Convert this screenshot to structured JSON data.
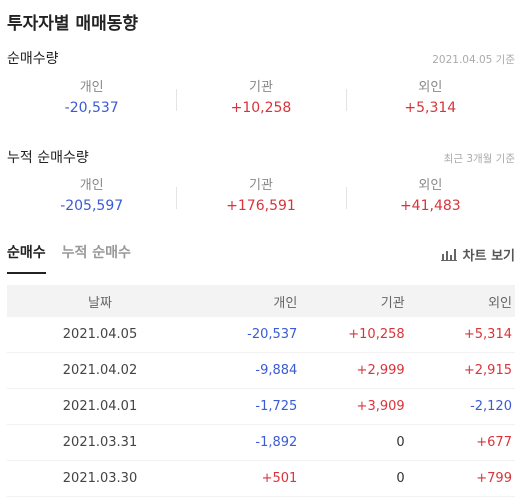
{
  "title": "투자자별 매매동향",
  "net": {
    "title": "순매수량",
    "note": "2021.04.05 기준",
    "stats": [
      {
        "label": "개인",
        "value": "-20,537"
      },
      {
        "label": "기관",
        "value": "+10,258"
      },
      {
        "label": "외인",
        "value": "+5,314"
      }
    ]
  },
  "cumulative": {
    "title": "누적 순매수량",
    "note": "최근 3개월 기준",
    "stats": [
      {
        "label": "개인",
        "value": "-205,597"
      },
      {
        "label": "기관",
        "value": "+176,591"
      },
      {
        "label": "외인",
        "value": "+41,483"
      }
    ]
  },
  "tabs": [
    {
      "label": "순매수",
      "active": true
    },
    {
      "label": "누적 순매수",
      "active": false
    }
  ],
  "chart_button": {
    "label": "차트 보기",
    "icon": "bar-chart-icon"
  },
  "table": {
    "headers": [
      "날짜",
      "개인",
      "기관",
      "외인"
    ],
    "rows": [
      [
        "2021.04.05",
        "-20,537",
        "+10,258",
        "+5,314"
      ],
      [
        "2021.04.02",
        "-9,884",
        "+2,999",
        "+2,915"
      ],
      [
        "2021.04.01",
        "-1,725",
        "+3,909",
        "-2,120"
      ],
      [
        "2021.03.31",
        "-1,892",
        "0",
        "+677"
      ],
      [
        "2021.03.30",
        "+501",
        "0",
        "+799"
      ]
    ]
  },
  "colors": {
    "negative": "#3b5bd6",
    "positive": "#d9343b"
  }
}
